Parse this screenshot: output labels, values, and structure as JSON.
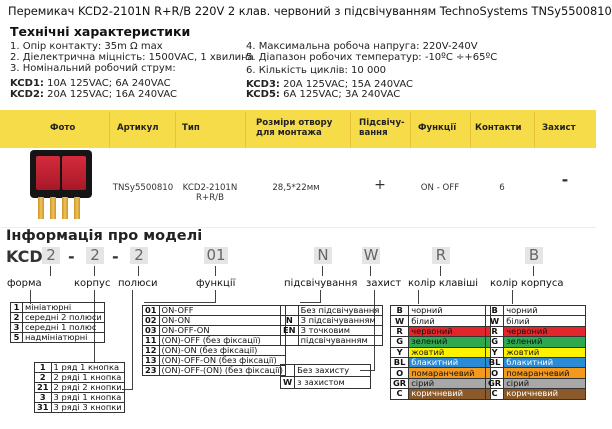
{
  "title": "Перемикач KCD2-2101N R+R/B 220V 2 клав. червоний з підсвічуванням TechnoSystems TNSy5500810",
  "specs_heading": "Технічні характеристики",
  "specs_left": [
    "1. Опір контакту: 35m Ω max",
    "2. Діелектрична міцність:  1500VAC, 1 хвилина",
    "3. Номінальний робочий струм:"
  ],
  "specs_left_kcd": [
    {
      "key": "KCD1:",
      "val": " 10A 125VAC; 6A 240VAC"
    },
    {
      "key": "KCD2:",
      "val": " 20A 125VAC; 16A 240VAC"
    }
  ],
  "specs_right": [
    "4. Максимальна робоча напруга: 220V-240V",
    "5. Діапазон робочих температур: -10ºC ÷+65ºC",
    "6. Кількість циклів: 10 000"
  ],
  "specs_right_kcd": [
    {
      "key": "KCD3:",
      "val": " 20A 125VAC; 15A 240VAC"
    },
    {
      "key": "KCD5:",
      "val": " 6A 125VAC; 3A 240VAC"
    }
  ],
  "table": {
    "headers": {
      "photo": "Фото",
      "article": "Артикул",
      "type": "Тип",
      "hole1": "Розміри отвору",
      "hole2": "для монтажа",
      "light1": "Підсвічу-",
      "light2": "вання",
      "func": "Функції",
      "contacts": "Контакти",
      "protect": "Захист"
    },
    "row": {
      "article": "TNSy5500810",
      "type1": "KCD2-2101N",
      "type2": "R+R/B",
      "hole": "28,5*22мм",
      "light": "+",
      "func": "ON - OFF",
      "contacts": "6",
      "protect": "-"
    }
  },
  "model": {
    "heading": "Інформація про моделі",
    "prefix": "KCD",
    "boxes": [
      "2",
      "2",
      "01",
      "N",
      "W",
      "R",
      "B"
    ],
    "dash": "-",
    "labels": {
      "form": "форма",
      "body": "корпус",
      "poles": "полюси",
      "functions": "функції",
      "lighting": "підсвічування",
      "protection": "захист",
      "key_color": "колір клавіші",
      "body_color": "колір корпуса"
    },
    "forms": [
      {
        "k": "1",
        "v": "мініатюрні"
      },
      {
        "k": "2",
        "v": "середні 2 полюси"
      },
      {
        "k": "3",
        "v": "середні 1 полюс"
      },
      {
        "k": "5",
        "v": "надмініатюрні"
      }
    ],
    "bodies": [
      {
        "k": "1",
        "v": "1 ряд 1 кнопка"
      },
      {
        "k": "2",
        "v": "2 ряді 1 кнопка"
      },
      {
        "k": "21",
        "v": "2 ряді 2 кнопки"
      },
      {
        "k": "3",
        "v": "3 ряді 1 кнопка"
      },
      {
        "k": "31",
        "v": "3 ряді 3 кнопки"
      }
    ],
    "functions": [
      {
        "k": "01",
        "v": "ON-OFF"
      },
      {
        "k": "02",
        "v": "ON-ON"
      },
      {
        "k": "03",
        "v": "ON-OFF-ON"
      },
      {
        "k": "11",
        "v": "(ON)-OFF (без фіксації)"
      },
      {
        "k": "12",
        "v": "(ON)-ON (без фіксації)"
      },
      {
        "k": "13",
        "v": "(ON)-OFF-ON (без фіксації)"
      },
      {
        "k": "23",
        "v": "(ON)-OFF-(ON) (без фіксації)"
      }
    ],
    "lighting": [
      {
        "k": "",
        "v": "Без підсвічування"
      },
      {
        "k": "N",
        "v": "З підсвічуванням"
      },
      {
        "k": "EN",
        "v": "З точковим"
      },
      {
        "k": "",
        "v": "підсвічуванням"
      }
    ],
    "protection": [
      {
        "k": "",
        "v": "Без захисту"
      },
      {
        "k": "W",
        "v": "з захистом"
      }
    ],
    "colors": [
      {
        "k": "B",
        "v": "чорний",
        "bg": "#ffffff",
        "fg": "#111111"
      },
      {
        "k": "W",
        "v": "білий",
        "bg": "#ffffff",
        "fg": "#111111"
      },
      {
        "k": "R",
        "v": "червоний",
        "bg": "#e2262b",
        "fg": "#111111"
      },
      {
        "k": "G",
        "v": "зелений",
        "bg": "#2fa84f",
        "fg": "#111111"
      },
      {
        "k": "Y",
        "v": "жовтий",
        "bg": "#fff200",
        "fg": "#111111"
      },
      {
        "k": "BL",
        "v": "блакитний",
        "bg": "#2b8ad6",
        "fg": "#ffffff"
      },
      {
        "k": "O",
        "v": "помаранчевий",
        "bg": "#f39a1e",
        "fg": "#111111"
      },
      {
        "k": "GR",
        "v": "сірий",
        "bg": "#a8a8a8",
        "fg": "#111111"
      },
      {
        "k": "C",
        "v": "коричневий",
        "bg": "#8b5a2b",
        "fg": "#ffffff"
      }
    ]
  }
}
